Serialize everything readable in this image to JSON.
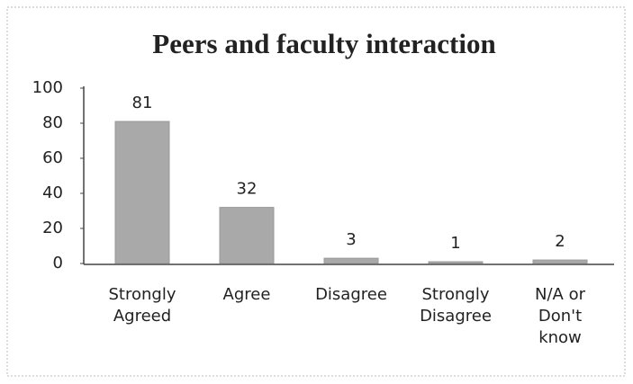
{
  "chart_data": {
    "type": "bar",
    "title": "Peers and faculty interaction",
    "categories": [
      "Strongly Agreed",
      "Agree",
      "Disagree",
      "Strongly Disagree",
      "N/A or Don't know"
    ],
    "values": [
      81,
      32,
      3,
      1,
      2
    ],
    "color": "#a9a9a9",
    "ylim": [
      0,
      100
    ],
    "yticks": [
      0,
      20,
      40,
      60,
      80,
      100
    ],
    "grid": false
  }
}
